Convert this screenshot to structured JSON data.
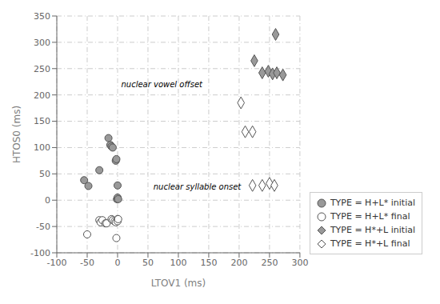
{
  "chart_data": {
    "type": "scatter",
    "xlabel": "LTOV1 (ms)",
    "ylabel": "HTOS0 (ms)",
    "xlim": [
      -100,
      300
    ],
    "ylim": [
      -100,
      350
    ],
    "xticks": [
      -100,
      -50,
      0,
      50,
      100,
      150,
      200,
      250,
      300
    ],
    "yticks": [
      -100,
      -50,
      0,
      50,
      100,
      150,
      200,
      250,
      300,
      350
    ],
    "grid": true,
    "legend": "lower right",
    "annotations": [
      {
        "text": "nuclear vowel offset",
        "x": 2,
        "y": 220
      },
      {
        "text": "nuclear syllable onset",
        "x": 55,
        "y": 25
      }
    ],
    "series": [
      {
        "name": "TYPE = H+L* initial",
        "color": "#999999",
        "marker": "circle",
        "x": [
          -55,
          -48,
          -30,
          -15,
          -12,
          -10,
          -8,
          -3,
          -2,
          -1,
          0,
          0,
          1
        ],
        "values": [
          38,
          27,
          57,
          118,
          105,
          102,
          100,
          75,
          78,
          2,
          5,
          28,
          2
        ]
      },
      {
        "name": "TYPE = H+L* final",
        "color": "#ffffff",
        "marker": "circle",
        "x": [
          -50,
          -30,
          -28,
          -25,
          -20,
          -18,
          -10,
          -8,
          -5,
          -3,
          -2,
          0,
          0,
          1
        ],
        "values": [
          -65,
          -38,
          -42,
          -38,
          -44,
          -44,
          -36,
          -38,
          -40,
          -42,
          -72,
          -36,
          -40,
          -36
        ]
      },
      {
        "name": "TYPE = H*+L initial",
        "color": "#999999",
        "marker": "diamond",
        "x": [
          260,
          225,
          238,
          248,
          255,
          262,
          272
        ],
        "values": [
          315,
          265,
          242,
          245,
          240,
          242,
          238
        ]
      },
      {
        "name": "TYPE = H*+L final",
        "color": "#ffffff",
        "marker": "diamond",
        "x": [
          203,
          210,
          222,
          222,
          238,
          250,
          258
        ],
        "values": [
          185,
          130,
          130,
          28,
          28,
          32,
          28
        ]
      }
    ]
  }
}
